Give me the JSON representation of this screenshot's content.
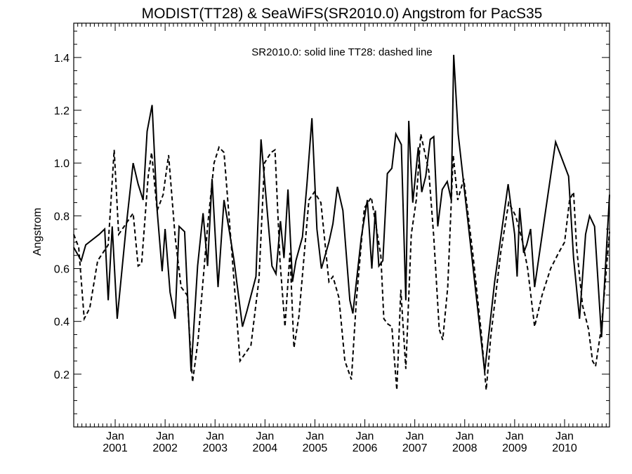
{
  "chart_data": {
    "type": "line",
    "title": "MODIST(TT28) & SeaWiFS(SR2010.0)  Angstrom for PacS35",
    "ylabel": "Angstrom",
    "xlabel": "",
    "annotation": "SR2010.0: solid line   TT28: dashed line",
    "ylim": [
      0.0,
      1.53
    ],
    "yticks": [
      0.2,
      0.4,
      0.6,
      0.8,
      1.0,
      1.2,
      1.4
    ],
    "ytick_labels": [
      "0.2",
      "0.4",
      "0.6",
      "0.8",
      "1.0",
      "1.2",
      "1.4"
    ],
    "xlim": [
      2000.17,
      2010.9
    ],
    "xticks": [
      {
        "x": 2001.0,
        "month": "Jan",
        "year": "2001"
      },
      {
        "x": 2002.0,
        "month": "Jan",
        "year": "2002"
      },
      {
        "x": 2003.0,
        "month": "Jan",
        "year": "2003"
      },
      {
        "x": 2004.0,
        "month": "Jan",
        "year": "2004"
      },
      {
        "x": 2005.0,
        "month": "Jan",
        "year": "2005"
      },
      {
        "x": 2006.0,
        "month": "Jan",
        "year": "2006"
      },
      {
        "x": 2007.0,
        "month": "Jan",
        "year": "2007"
      },
      {
        "x": 2008.0,
        "month": "Jan",
        "year": "2008"
      },
      {
        "x": 2009.0,
        "month": "Jan",
        "year": "2009"
      },
      {
        "x": 2010.0,
        "month": "Jan",
        "year": "2010"
      }
    ],
    "grid": false,
    "series": [
      {
        "name": "SR2010.0",
        "style": "solid",
        "color": "#000000",
        "points": [
          [
            2000.17,
            0.68
          ],
          [
            2000.32,
            0.63
          ],
          [
            2000.41,
            0.69
          ],
          [
            2000.68,
            0.73
          ],
          [
            2000.79,
            0.75
          ],
          [
            2000.86,
            0.48
          ],
          [
            2000.94,
            0.76
          ],
          [
            2001.04,
            0.41
          ],
          [
            2001.22,
            0.76
          ],
          [
            2001.36,
            1.0
          ],
          [
            2001.46,
            0.92
          ],
          [
            2001.56,
            0.86
          ],
          [
            2001.64,
            1.12
          ],
          [
            2001.74,
            1.22
          ],
          [
            2001.84,
            0.82
          ],
          [
            2001.94,
            0.59
          ],
          [
            2002.0,
            0.75
          ],
          [
            2002.1,
            0.51
          ],
          [
            2002.2,
            0.41
          ],
          [
            2002.28,
            0.76
          ],
          [
            2002.39,
            0.74
          ],
          [
            2002.52,
            0.21
          ],
          [
            2002.65,
            0.61
          ],
          [
            2002.76,
            0.81
          ],
          [
            2002.85,
            0.61
          ],
          [
            2002.94,
            0.94
          ],
          [
            2003.06,
            0.53
          ],
          [
            2003.18,
            0.86
          ],
          [
            2003.28,
            0.75
          ],
          [
            2003.38,
            0.63
          ],
          [
            2003.55,
            0.38
          ],
          [
            2003.64,
            0.44
          ],
          [
            2003.82,
            0.57
          ],
          [
            2003.92,
            1.09
          ],
          [
            2004.14,
            0.61
          ],
          [
            2004.22,
            0.58
          ],
          [
            2004.31,
            0.78
          ],
          [
            2004.38,
            0.64
          ],
          [
            2004.46,
            0.9
          ],
          [
            2004.55,
            0.55
          ],
          [
            2004.62,
            0.63
          ],
          [
            2004.75,
            0.72
          ],
          [
            2004.84,
            0.92
          ],
          [
            2004.94,
            1.17
          ],
          [
            2005.04,
            0.75
          ],
          [
            2005.13,
            0.6
          ],
          [
            2005.28,
            0.7
          ],
          [
            2005.36,
            0.77
          ],
          [
            2005.45,
            0.91
          ],
          [
            2005.56,
            0.82
          ],
          [
            2005.7,
            0.48
          ],
          [
            2005.76,
            0.43
          ],
          [
            2005.93,
            0.72
          ],
          [
            2006.05,
            0.86
          ],
          [
            2006.14,
            0.6
          ],
          [
            2006.21,
            0.82
          ],
          [
            2006.28,
            0.61
          ],
          [
            2006.36,
            0.63
          ],
          [
            2006.45,
            0.96
          ],
          [
            2006.54,
            0.98
          ],
          [
            2006.62,
            1.11
          ],
          [
            2006.73,
            1.07
          ],
          [
            2006.82,
            0.48
          ],
          [
            2006.88,
            1.16
          ],
          [
            2006.96,
            0.85
          ],
          [
            2007.07,
            1.06
          ],
          [
            2007.14,
            0.89
          ],
          [
            2007.22,
            0.95
          ],
          [
            2007.31,
            1.09
          ],
          [
            2007.38,
            1.1
          ],
          [
            2007.46,
            0.76
          ],
          [
            2007.55,
            0.9
          ],
          [
            2007.65,
            0.93
          ],
          [
            2007.73,
            0.86
          ],
          [
            2007.78,
            1.41
          ],
          [
            2007.87,
            1.11
          ],
          [
            2008.04,
            0.82
          ],
          [
            2008.4,
            0.21
          ],
          [
            2008.6,
            0.55
          ],
          [
            2008.87,
            0.92
          ],
          [
            2009.0,
            0.73
          ],
          [
            2009.05,
            0.57
          ],
          [
            2009.1,
            0.83
          ],
          [
            2009.18,
            0.66
          ],
          [
            2009.24,
            0.69
          ],
          [
            2009.32,
            0.75
          ],
          [
            2009.4,
            0.53
          ],
          [
            2009.62,
            0.82
          ],
          [
            2009.82,
            1.08
          ],
          [
            2010.08,
            0.95
          ],
          [
            2010.18,
            0.64
          ],
          [
            2010.3,
            0.41
          ],
          [
            2010.42,
            0.73
          ],
          [
            2010.5,
            0.8
          ],
          [
            2010.6,
            0.76
          ],
          [
            2010.74,
            0.34
          ],
          [
            2010.9,
            0.88
          ]
        ]
      },
      {
        "name": "TT28",
        "style": "dashed",
        "color": "#000000",
        "points": [
          [
            2000.17,
            0.73
          ],
          [
            2000.27,
            0.68
          ],
          [
            2000.38,
            0.41
          ],
          [
            2000.49,
            0.45
          ],
          [
            2000.65,
            0.63
          ],
          [
            2000.86,
            0.69
          ],
          [
            2000.98,
            1.05
          ],
          [
            2001.07,
            0.73
          ],
          [
            2001.18,
            0.76
          ],
          [
            2001.36,
            0.81
          ],
          [
            2001.46,
            0.61
          ],
          [
            2001.53,
            0.62
          ],
          [
            2001.66,
            0.95
          ],
          [
            2001.73,
            1.04
          ],
          [
            2001.84,
            0.82
          ],
          [
            2001.96,
            0.88
          ],
          [
            2002.07,
            1.03
          ],
          [
            2002.2,
            0.72
          ],
          [
            2002.32,
            0.53
          ],
          [
            2002.44,
            0.5
          ],
          [
            2002.55,
            0.17
          ],
          [
            2002.66,
            0.33
          ],
          [
            2002.85,
            0.76
          ],
          [
            2002.98,
            1.0
          ],
          [
            2003.08,
            1.06
          ],
          [
            2003.18,
            1.04
          ],
          [
            2003.35,
            0.63
          ],
          [
            2003.5,
            0.25
          ],
          [
            2003.72,
            0.31
          ],
          [
            2003.88,
            0.56
          ],
          [
            2003.99,
            1.0
          ],
          [
            2004.12,
            1.04
          ],
          [
            2004.2,
            1.05
          ],
          [
            2004.3,
            0.63
          ],
          [
            2004.4,
            0.38
          ],
          [
            2004.5,
            0.66
          ],
          [
            2004.58,
            0.3
          ],
          [
            2004.68,
            0.42
          ],
          [
            2004.88,
            0.86
          ],
          [
            2004.99,
            0.89
          ],
          [
            2005.12,
            0.85
          ],
          [
            2005.28,
            0.55
          ],
          [
            2005.36,
            0.57
          ],
          [
            2005.48,
            0.49
          ],
          [
            2005.6,
            0.25
          ],
          [
            2005.73,
            0.18
          ],
          [
            2005.83,
            0.48
          ],
          [
            2005.99,
            0.83
          ],
          [
            2006.13,
            0.87
          ],
          [
            2006.32,
            0.65
          ],
          [
            2006.38,
            0.41
          ],
          [
            2006.46,
            0.39
          ],
          [
            2006.54,
            0.38
          ],
          [
            2006.64,
            0.14
          ],
          [
            2006.72,
            0.52
          ],
          [
            2006.82,
            0.22
          ],
          [
            2006.93,
            0.73
          ],
          [
            2007.03,
            0.86
          ],
          [
            2007.12,
            1.11
          ],
          [
            2007.28,
            0.97
          ],
          [
            2007.38,
            0.72
          ],
          [
            2007.49,
            0.37
          ],
          [
            2007.56,
            0.33
          ],
          [
            2007.66,
            0.53
          ],
          [
            2007.77,
            1.03
          ],
          [
            2007.86,
            0.86
          ],
          [
            2007.98,
            0.94
          ],
          [
            2008.16,
            0.66
          ],
          [
            2008.33,
            0.36
          ],
          [
            2008.43,
            0.14
          ],
          [
            2008.52,
            0.34
          ],
          [
            2008.72,
            0.66
          ],
          [
            2008.88,
            0.85
          ],
          [
            2009.02,
            0.8
          ],
          [
            2009.16,
            0.7
          ],
          [
            2009.26,
            0.6
          ],
          [
            2009.4,
            0.38
          ],
          [
            2009.55,
            0.5
          ],
          [
            2009.72,
            0.6
          ],
          [
            2009.88,
            0.66
          ],
          [
            2010.0,
            0.7
          ],
          [
            2010.1,
            0.86
          ],
          [
            2010.18,
            0.89
          ],
          [
            2010.24,
            0.68
          ],
          [
            2010.36,
            0.46
          ],
          [
            2010.48,
            0.37
          ],
          [
            2010.56,
            0.25
          ],
          [
            2010.62,
            0.23
          ],
          [
            2010.74,
            0.38
          ],
          [
            2010.9,
            0.74
          ]
        ]
      }
    ]
  }
}
